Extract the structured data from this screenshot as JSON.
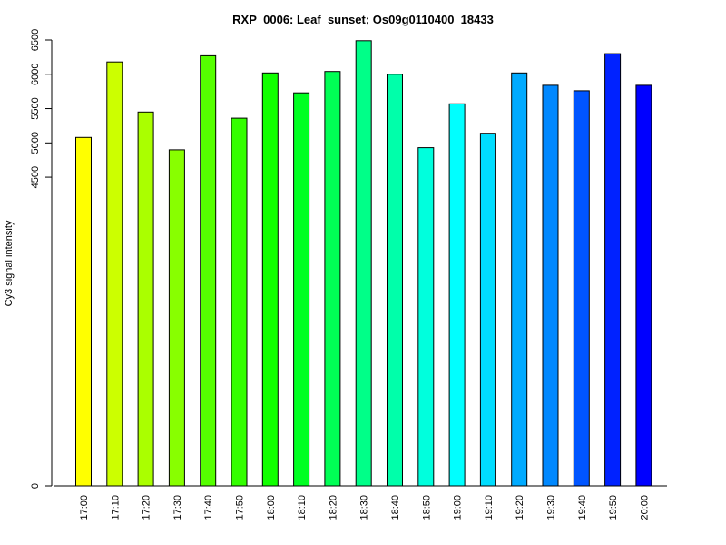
{
  "chart_data": {
    "type": "bar",
    "title": "RXP_0006: Leaf_sunset; Os09g0110400_18433",
    "xlabel": "",
    "ylabel": "Cy3 signal intensity",
    "ylim": [
      0,
      6500
    ],
    "yticks": [
      0,
      4500,
      5000,
      5500,
      6000,
      6500
    ],
    "ytick_labels": [
      "0",
      "4500",
      "5000",
      "5500",
      "6000",
      "6500"
    ],
    "categories": [
      "17:00",
      "17:10",
      "17:20",
      "17:30",
      "17:40",
      "17:50",
      "18:00",
      "18:10",
      "18:20",
      "18:30",
      "18:40",
      "18:50",
      "19:00",
      "19:10",
      "19:20",
      "19:30",
      "19:40",
      "19:50",
      "20:00"
    ],
    "values": [
      5080,
      6180,
      5450,
      4900,
      6270,
      5360,
      6020,
      5730,
      6040,
      6490,
      6000,
      4930,
      5570,
      5140,
      6020,
      5840,
      5760,
      6300,
      5840
    ],
    "colors": [
      "#ffff00",
      "#ccff00",
      "#aaff00",
      "#88ff00",
      "#55ff00",
      "#33ff00",
      "#11ff00",
      "#00ff22",
      "#00ff55",
      "#00ff88",
      "#00ffaa",
      "#00ffdd",
      "#00ffff",
      "#00ddff",
      "#00aaff",
      "#0088ff",
      "#0055ff",
      "#0022ff",
      "#0000ff"
    ],
    "grid": false,
    "bar_border": "#000000"
  }
}
